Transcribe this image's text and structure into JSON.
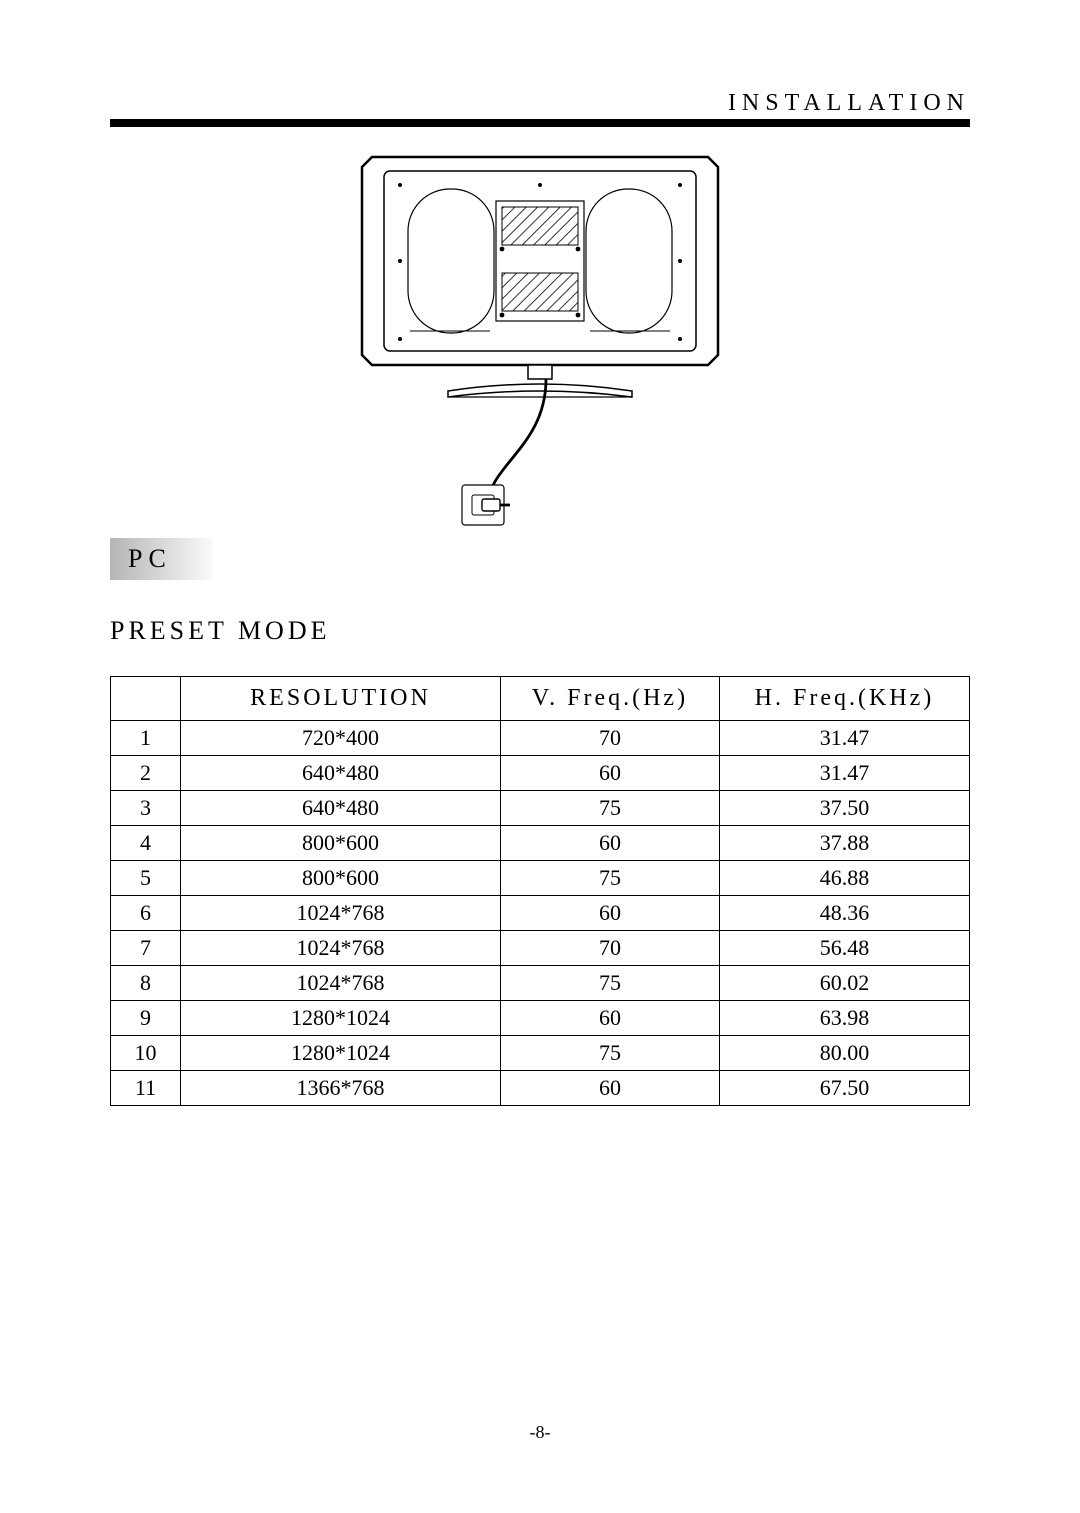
{
  "header": {
    "section_title": "INSTALLATION"
  },
  "labels": {
    "pc": "PC",
    "preset_mode": "PRESET MODE"
  },
  "table": {
    "headers": {
      "idx": "",
      "resolution": "RESOLUTION",
      "vfreq": "V. Freq.(Hz)",
      "hfreq": "H. Freq.(KHz)"
    },
    "rows": [
      {
        "idx": "1",
        "resolution": "720*400",
        "vfreq": "70",
        "hfreq": "31.47"
      },
      {
        "idx": "2",
        "resolution": "640*480",
        "vfreq": "60",
        "hfreq": "31.47"
      },
      {
        "idx": "3",
        "resolution": "640*480",
        "vfreq": "75",
        "hfreq": "37.50"
      },
      {
        "idx": "4",
        "resolution": "800*600",
        "vfreq": "60",
        "hfreq": "37.88"
      },
      {
        "idx": "5",
        "resolution": "800*600",
        "vfreq": "75",
        "hfreq": "46.88"
      },
      {
        "idx": "6",
        "resolution": "1024*768",
        "vfreq": "60",
        "hfreq": "48.36"
      },
      {
        "idx": "7",
        "resolution": "1024*768",
        "vfreq": "70",
        "hfreq": "56.48"
      },
      {
        "idx": "8",
        "resolution": "1024*768",
        "vfreq": "75",
        "hfreq": "60.02"
      },
      {
        "idx": "9",
        "resolution": "1280*1024",
        "vfreq": "60",
        "hfreq": "63.98"
      },
      {
        "idx": "10",
        "resolution": "1280*1024",
        "vfreq": "75",
        "hfreq": "80.00"
      },
      {
        "idx": "11",
        "resolution": "1366*768",
        "vfreq": "60",
        "hfreq": "67.50"
      }
    ]
  },
  "diagram": {
    "outer_stroke": "#000000",
    "panel_stroke": "#000000",
    "hatch_stroke": "#333333",
    "cable_stroke": "#000000",
    "plug_fill": "#ffffff",
    "stand_stroke": "#000000"
  },
  "footer": {
    "page_number": "-8-"
  }
}
